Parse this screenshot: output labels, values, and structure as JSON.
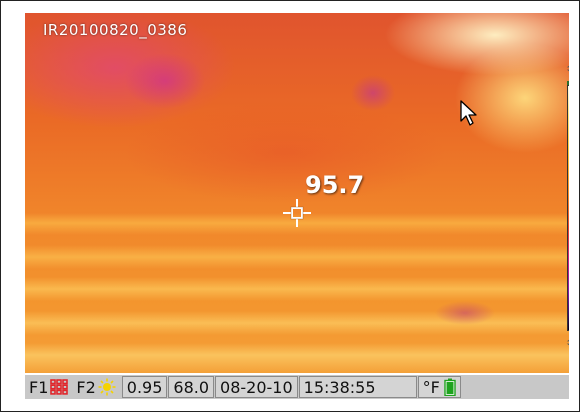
{
  "image_label": "IR20100820_0386",
  "spot_temperature": "95.7",
  "status_bar": {
    "f1_label": "F1",
    "f1_icon": "grid-icon",
    "f2_label": "F2",
    "f2_icon": "sun-icon",
    "emissivity": "0.95",
    "reflected_temp": "68.0",
    "date": "08-20-10",
    "time": "15:38:55",
    "unit": "°F",
    "battery_icon": "battery-icon"
  },
  "colors": {
    "grid_icon": "#e0262b",
    "sun_icon": "#f5d300",
    "battery": "#1fa31f",
    "scale_top_marker": "#2c6e2c"
  }
}
